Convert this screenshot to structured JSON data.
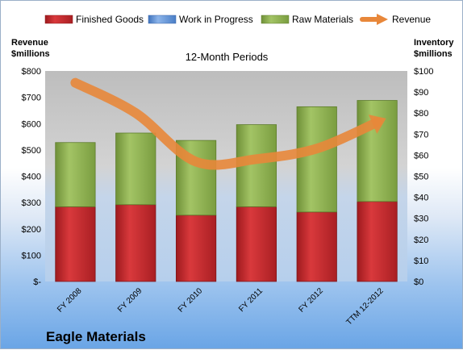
{
  "chart_data": {
    "type": "bar",
    "stacked": true,
    "title": "12-Month Periods",
    "company": "Eagle Materials",
    "categories": [
      "FY 2008",
      "FY 2009",
      "FY 2010",
      "FY 2011",
      "FY 2012",
      "TTM 12-2012"
    ],
    "y_left": {
      "label_line1": "Revenue",
      "label_line2": "$millions",
      "range": [
        0,
        800
      ],
      "ticks": [
        0,
        100,
        200,
        300,
        400,
        500,
        600,
        700,
        800
      ],
      "tick_labels": [
        "$-",
        "$100",
        "$200",
        "$300",
        "$400",
        "$500",
        "$600",
        "$700",
        "$800"
      ]
    },
    "y_right": {
      "label_line1": "Inventory",
      "label_line2": "$millions",
      "range": [
        0,
        100
      ],
      "ticks": [
        0,
        10,
        20,
        30,
        40,
        50,
        60,
        70,
        80,
        90,
        100
      ],
      "tick_labels": [
        "$0",
        "$10",
        "$20",
        "$30",
        "$40",
        "$50",
        "$60",
        "$70",
        "$80",
        "$90",
        "$100"
      ]
    },
    "series": [
      {
        "name": "Finished Goods",
        "axis": "right",
        "color": "#c0282c",
        "values": [
          35.5,
          36.5,
          31.5,
          35.5,
          33,
          38
        ]
      },
      {
        "name": "Work in Progress",
        "axis": "right",
        "color": "#5b8fd6",
        "values": [
          0,
          0,
          0,
          0,
          0,
          0
        ]
      },
      {
        "name": "Raw Materials",
        "axis": "right",
        "color": "#8db04d",
        "values": [
          30.5,
          34,
          35.5,
          39,
          50,
          48
        ]
      },
      {
        "name": "Revenue",
        "axis": "left",
        "type": "line",
        "color": "#e8873a",
        "values": [
          755,
          640,
          455,
          465,
          505,
          605
        ]
      }
    ],
    "grid": false,
    "legend": "top"
  }
}
